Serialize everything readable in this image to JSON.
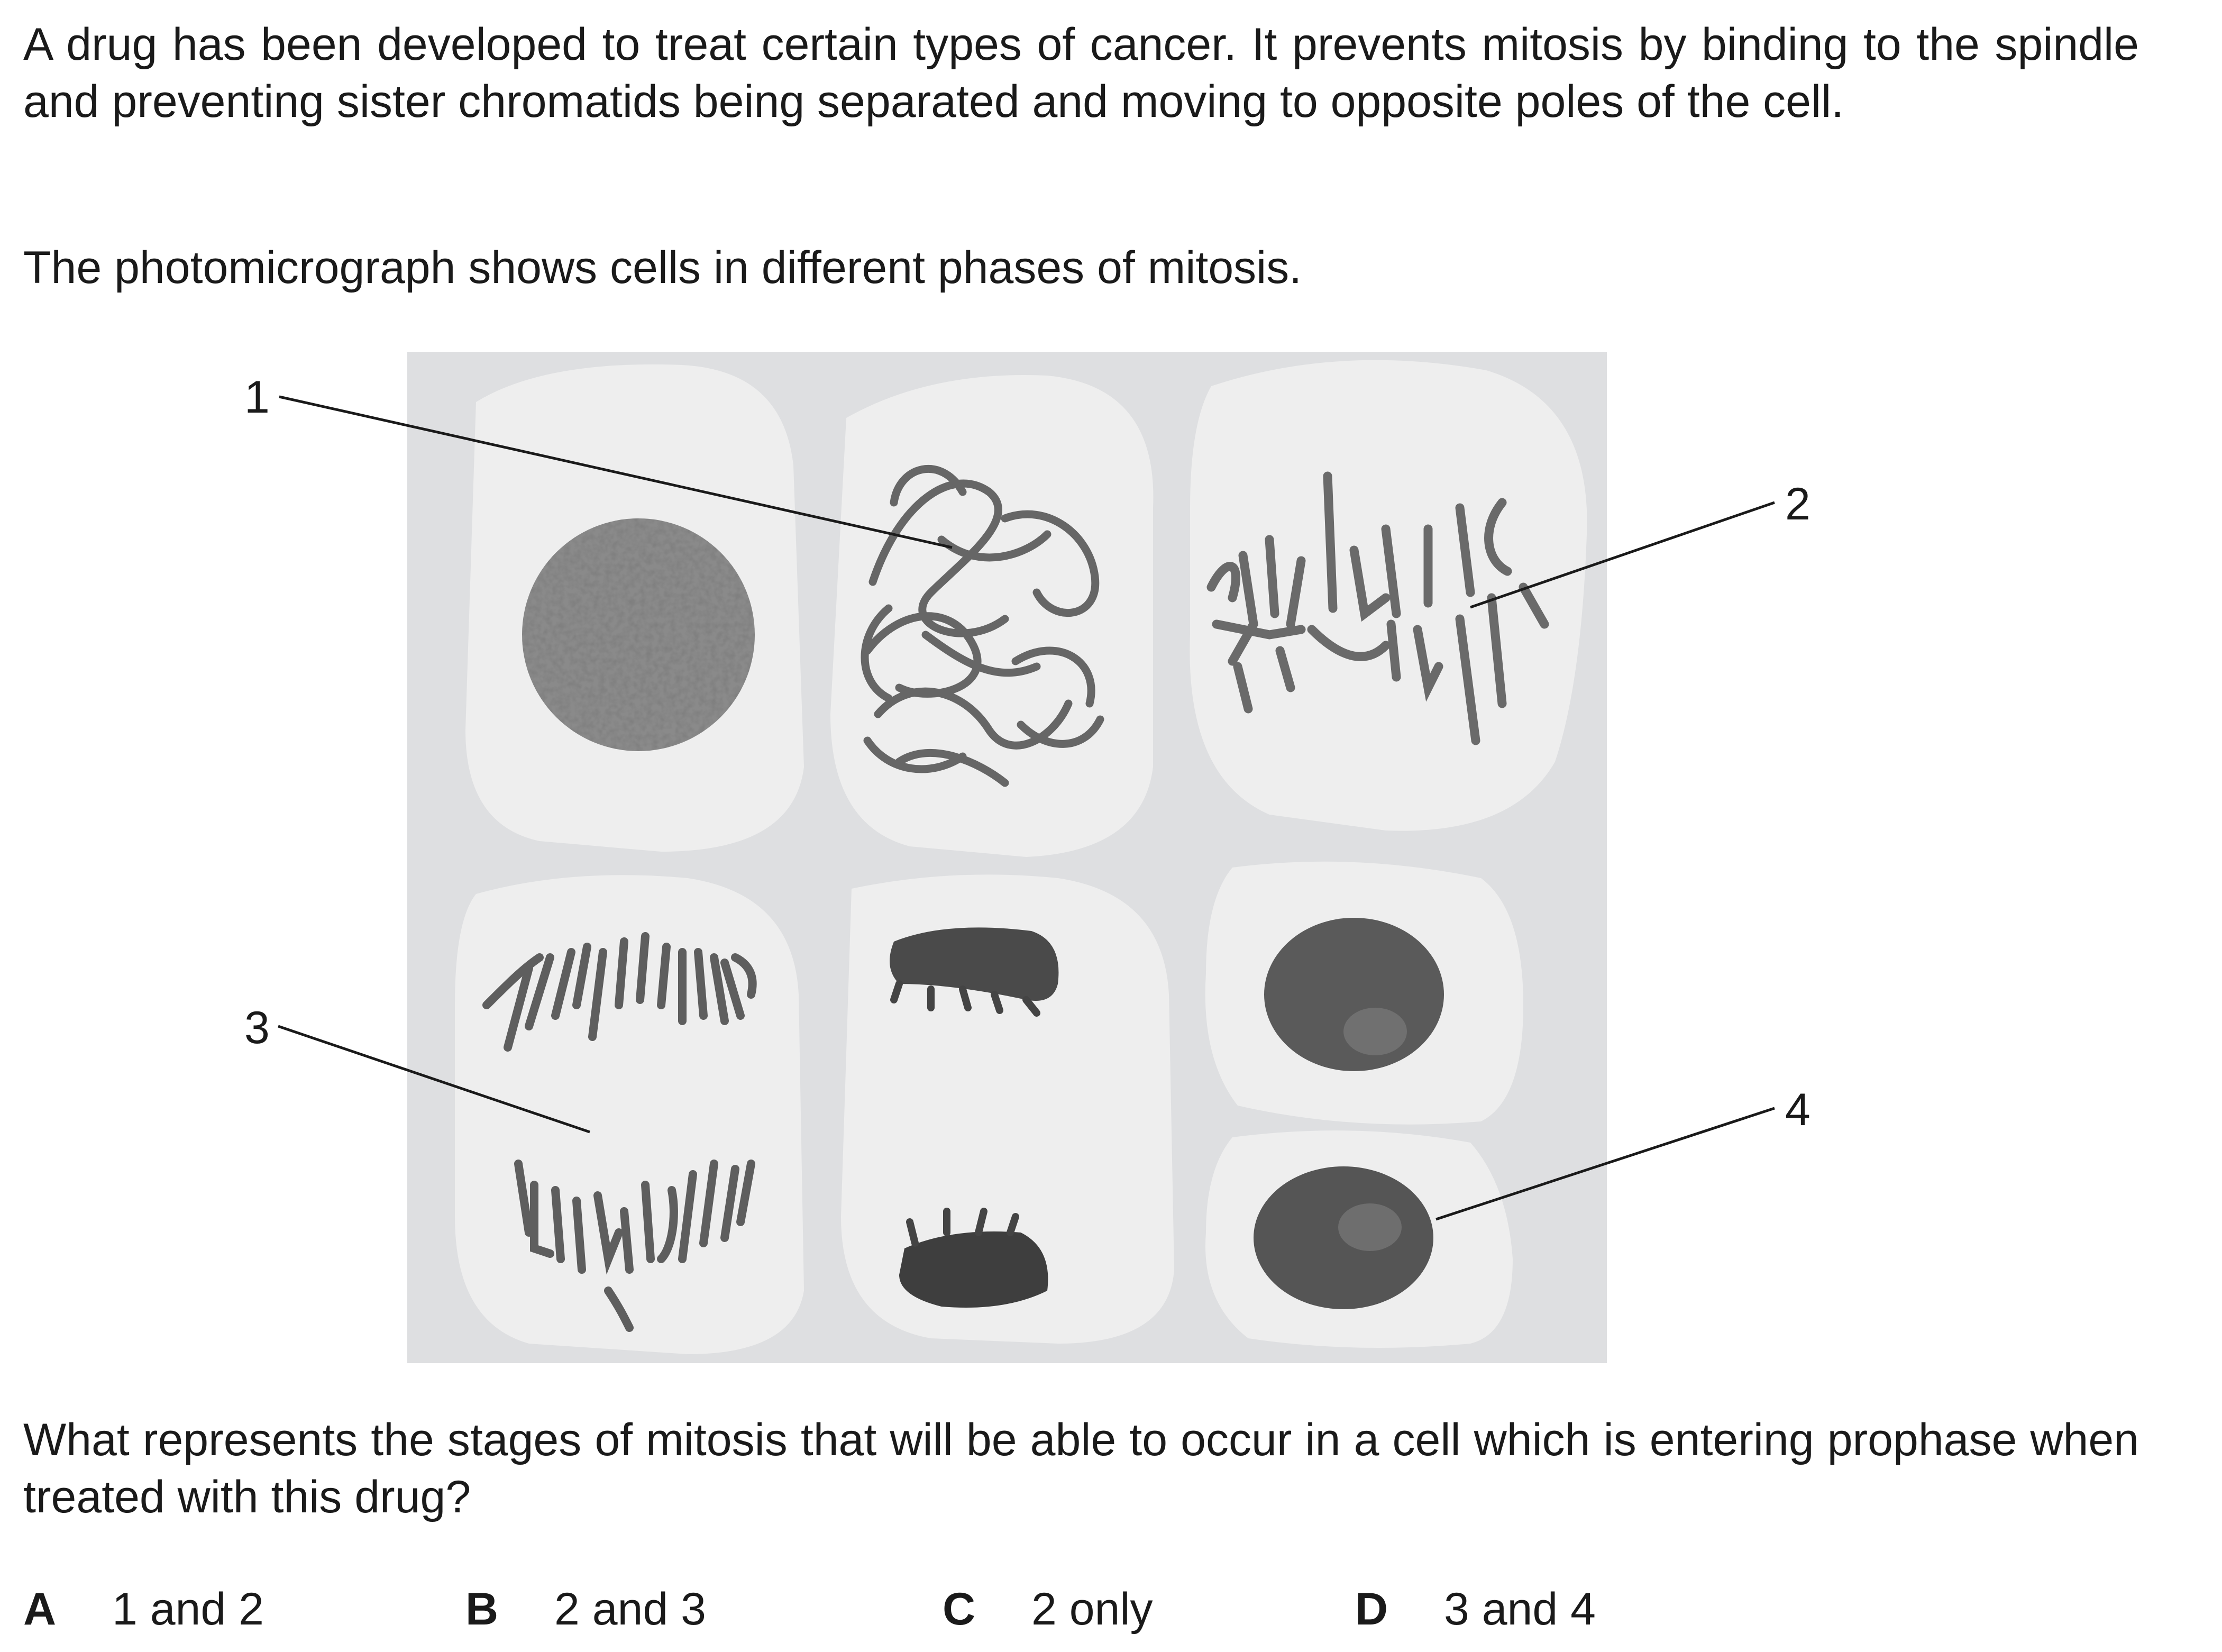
{
  "intro": "A drug has been developed to treat certain types of cancer. It prevents mitosis by binding to the spindle and preventing sister chromatids being separated and moving to opposite poles of the cell.",
  "caption": "The photomicrograph shows cells in different phases of mitosis.",
  "figure": {
    "labels": [
      "1",
      "2",
      "3",
      "4"
    ]
  },
  "question": "What represents the stages of mitosis that will be able to occur in a cell which is entering prophase when treated with this drug?",
  "options": [
    {
      "letter": "A",
      "text": "1 and 2"
    },
    {
      "letter": "B",
      "text": "2 and 3"
    },
    {
      "letter": "C",
      "text": "2 only"
    },
    {
      "letter": "D",
      "text": "3 and 4"
    }
  ]
}
